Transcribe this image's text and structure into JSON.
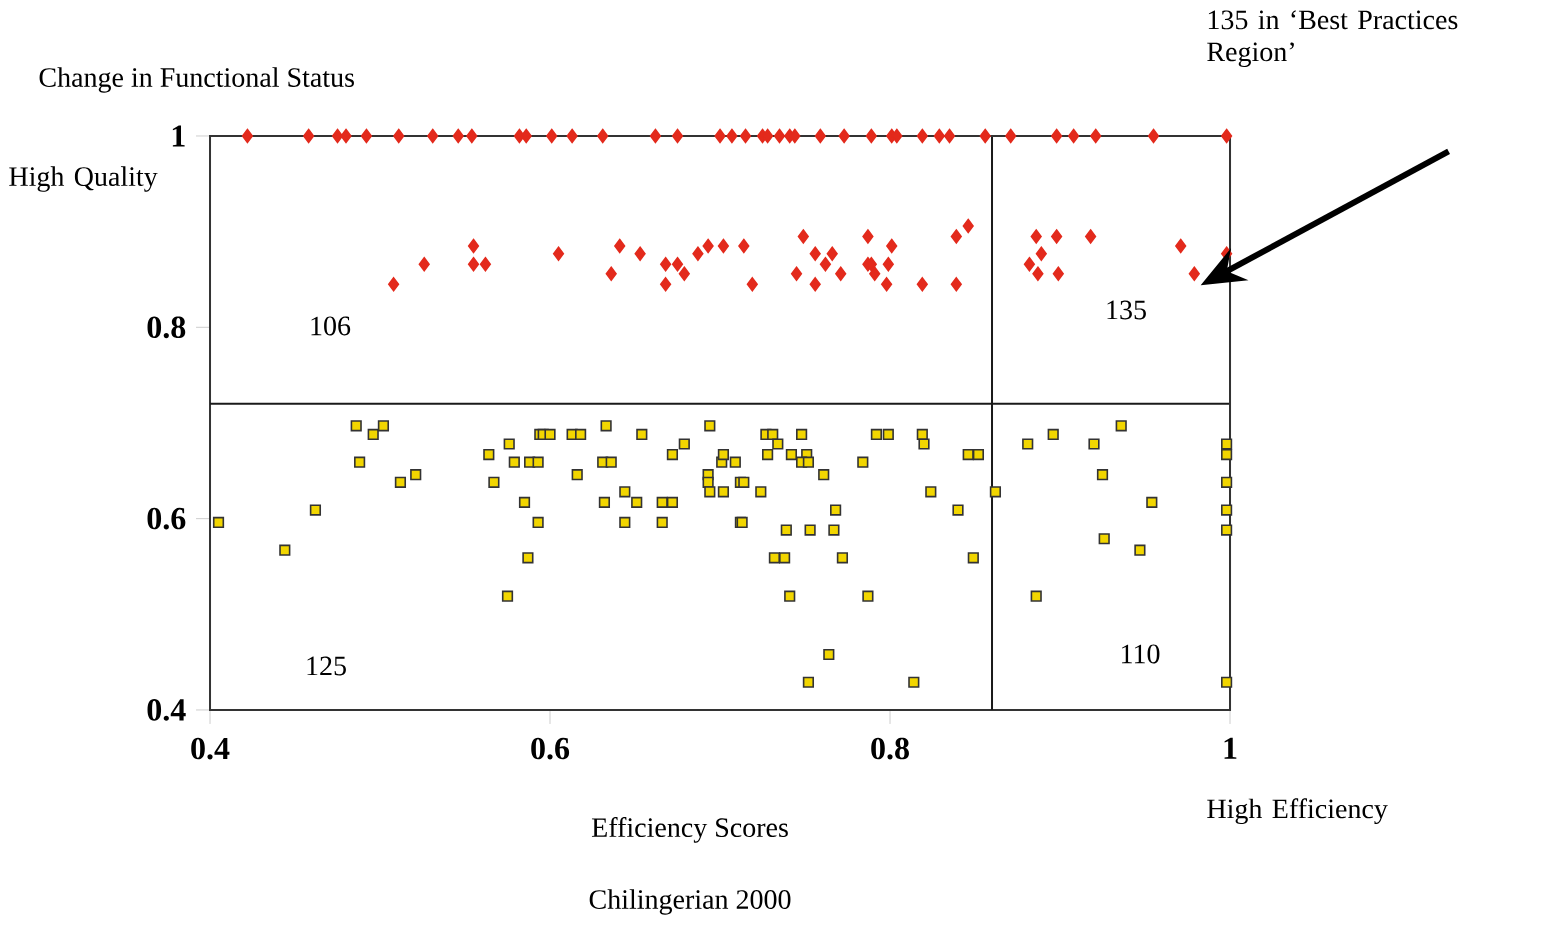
{
  "chart_data": {
    "type": "scatter",
    "xlabel": "Efficiency Scores",
    "xlim": [
      0.4,
      1
    ],
    "ylim": [
      0.4,
      1
    ],
    "xticks": [
      0.4,
      0.6,
      0.8,
      1
    ],
    "yticks": [
      0.4,
      0.6,
      0.8,
      1
    ],
    "annotations": [
      "High Quality",
      "106",
      "135",
      "125",
      "110",
      "135 in ‘Best Practices Region’",
      "High Efficiency",
      "Chilingerian 2000",
      "Change in Functional Status"
    ],
    "ref_lines": [
      {
        "axis": "x",
        "value": 0.86,
        "color": "#1a1a1a"
      },
      {
        "axis": "y",
        "value": 0.72,
        "color": "#1a1a1a"
      }
    ],
    "series": [
      {
        "color": "#e32a1c",
        "marker": "diamond",
        "x": [
          0.422,
          0.458,
          0.475,
          0.48,
          0.492,
          0.511,
          0.531,
          0.546,
          0.554,
          0.582,
          0.586,
          0.601,
          0.613,
          0.631,
          0.662,
          0.675,
          0.7,
          0.707,
          0.715,
          0.725,
          0.728,
          0.735,
          0.741,
          0.744,
          0.759,
          0.773,
          0.789,
          0.801,
          0.804,
          0.819,
          0.829,
          0.835,
          0.856,
          0.871,
          0.898,
          0.908,
          0.921,
          0.955,
          0.998,
          0.508,
          0.526,
          0.555,
          0.555,
          0.562,
          0.605,
          0.636,
          0.641,
          0.653,
          0.668,
          0.668,
          0.675,
          0.679,
          0.687,
          0.693,
          0.702,
          0.714,
          0.719,
          0.745,
          0.749,
          0.756,
          0.756,
          0.762,
          0.766,
          0.771,
          0.787,
          0.787,
          0.789,
          0.791,
          0.798,
          0.799,
          0.801,
          0.819,
          0.839,
          0.846,
          0.839,
          0.882,
          0.886,
          0.889,
          0.887,
          0.898,
          0.899,
          0.918,
          0.971,
          0.979,
          0.998
        ],
        "values": [
          1,
          1,
          1,
          1,
          1,
          1,
          1,
          1,
          1,
          1,
          1,
          1,
          1,
          1,
          1,
          1,
          1,
          1,
          1,
          1,
          1,
          1,
          1,
          1,
          1,
          1,
          1,
          1,
          1,
          1,
          1,
          1,
          1,
          1,
          1,
          1,
          1,
          1,
          1,
          0.845,
          0.866,
          0.885,
          0.866,
          0.866,
          0.877,
          0.856,
          0.885,
          0.877,
          0.866,
          0.845,
          0.866,
          0.856,
          0.877,
          0.885,
          0.885,
          0.885,
          0.845,
          0.856,
          0.895,
          0.877,
          0.845,
          0.866,
          0.877,
          0.856,
          0.895,
          0.866,
          0.866,
          0.856,
          0.845,
          0.866,
          0.885,
          0.845,
          0.895,
          0.906,
          0.845,
          0.866,
          0.895,
          0.877,
          0.856,
          0.895,
          0.856,
          0.895,
          0.885,
          0.856,
          0.877
        ]
      },
      {
        "color": "#f2d600",
        "marker": "square",
        "x": [
          0.405,
          0.444,
          0.462,
          0.486,
          0.488,
          0.496,
          0.502,
          0.512,
          0.521,
          0.564,
          0.567,
          0.575,
          0.576,
          0.579,
          0.585,
          0.587,
          0.588,
          0.593,
          0.593,
          0.594,
          0.596,
          0.6,
          0.613,
          0.618,
          0.616,
          0.631,
          0.632,
          0.633,
          0.636,
          0.644,
          0.644,
          0.651,
          0.654,
          0.666,
          0.666,
          0.672,
          0.672,
          0.679,
          0.694,
          0.693,
          0.693,
          0.694,
          0.701,
          0.702,
          0.702,
          0.709,
          0.712,
          0.712,
          0.714,
          0.724,
          0.713,
          0.727,
          0.731,
          0.734,
          0.728,
          0.742,
          0.748,
          0.751,
          0.748,
          0.752,
          0.761,
          0.739,
          0.753,
          0.767,
          0.768,
          0.732,
          0.738,
          0.772,
          0.741,
          0.787,
          0.764,
          0.752,
          0.814,
          0.784,
          0.792,
          0.799,
          0.819,
          0.82,
          0.824,
          0.84,
          0.846,
          0.852,
          0.849,
          0.862,
          0.881,
          0.896,
          0.92,
          0.936,
          0.925,
          0.954,
          0.926,
          0.947,
          0.886,
          0.998,
          0.998,
          0.998,
          0.998,
          0.998,
          0.998
        ],
        "values": [
          0.596,
          0.567,
          0.609,
          0.697,
          0.659,
          0.688,
          0.697,
          0.638,
          0.646,
          0.667,
          0.638,
          0.519,
          0.678,
          0.659,
          0.617,
          0.559,
          0.659,
          0.659,
          0.596,
          0.688,
          0.688,
          0.688,
          0.688,
          0.688,
          0.646,
          0.659,
          0.617,
          0.697,
          0.659,
          0.628,
          0.596,
          0.617,
          0.688,
          0.617,
          0.596,
          0.617,
          0.667,
          0.678,
          0.697,
          0.646,
          0.638,
          0.628,
          0.659,
          0.667,
          0.628,
          0.659,
          0.638,
          0.596,
          0.638,
          0.628,
          0.596,
          0.688,
          0.688,
          0.678,
          0.667,
          0.667,
          0.688,
          0.667,
          0.659,
          0.659,
          0.646,
          0.588,
          0.588,
          0.588,
          0.609,
          0.559,
          0.559,
          0.559,
          0.519,
          0.519,
          0.458,
          0.429,
          0.429,
          0.659,
          0.688,
          0.688,
          0.688,
          0.678,
          0.628,
          0.609,
          0.667,
          0.667,
          0.559,
          0.628,
          0.678,
          0.688,
          0.678,
          0.697,
          0.646,
          0.617,
          0.579,
          0.567,
          0.519,
          0.678,
          0.667,
          0.638,
          0.609,
          0.588,
          0.429
        ]
      }
    ]
  }
}
